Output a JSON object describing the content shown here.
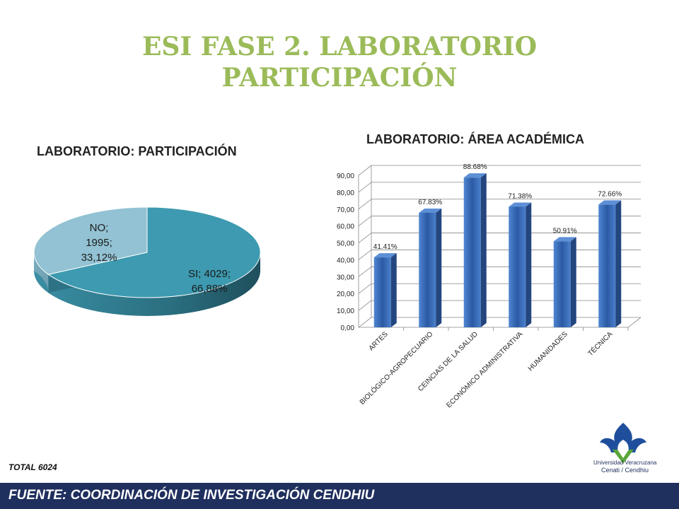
{
  "slide": {
    "title_line1": "ESI FASE 2. LABORATORIO",
    "title_line2": "PARTICIPACIÓN",
    "total": "TOTAL 6024",
    "footer": "FUENTE:   COORDINACIÓN DE INVESTIGACIÓN CENDHIU",
    "logo_line1": "Universidad Veracruzana",
    "logo_line2": "Cenati / Cendhiu"
  },
  "colors": {
    "title": "#9bbb59",
    "pie_si": "#3d9ab0",
    "pie_no": "#92c2d3",
    "bar": "#3a6fbf",
    "footer": "#1f2f5e"
  },
  "chart_data": [
    {
      "type": "pie",
      "title": "LABORATORIO: PARTICIPACIÓN",
      "style": "3d",
      "slices": [
        {
          "name": "SI",
          "value": 4029,
          "percent": "66,88%",
          "label": [
            "SI; 4029;",
            "66,88%"
          ]
        },
        {
          "name": "NO",
          "value": 1995,
          "percent": "33,12%",
          "label": [
            "NO;",
            "1995;",
            "33,12%"
          ]
        }
      ]
    },
    {
      "type": "bar",
      "title": "LABORATORIO: ÁREA ACADÉMICA",
      "style": "3d",
      "categories": [
        "ARTES",
        "BIOLÓGICO-AGROPECUARIO",
        "CEINCIAS DE LA SALUD",
        "ECONÓMICO ADMINISTRATIVA",
        "HUMANIDADES",
        "TÉCNICA"
      ],
      "values": [
        41.41,
        67.83,
        88.68,
        71.38,
        50.91,
        72.66
      ],
      "data_labels": [
        "41.41%",
        "67.83%",
        "88.68%",
        "71.38%",
        "50.91%",
        "72.66%"
      ],
      "yticks": [
        "0,00",
        "10,00",
        "20,00",
        "30,00",
        "40,00",
        "50,00",
        "60,00",
        "70,00",
        "80,00",
        "90,00"
      ],
      "ylim": [
        0,
        90
      ],
      "grid": true,
      "legend": "none"
    }
  ]
}
